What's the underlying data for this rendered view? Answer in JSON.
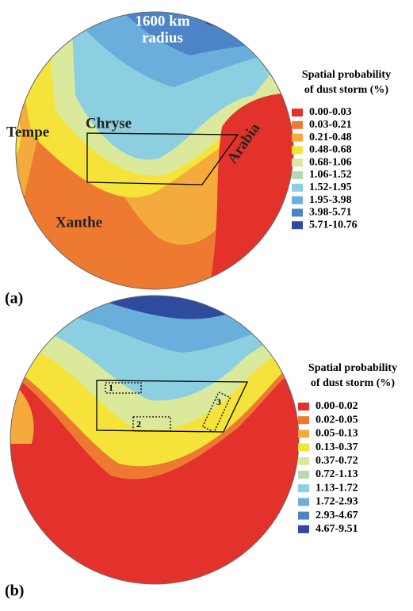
{
  "panels": [
    {
      "label": "(a)",
      "annotations": [
        [
          "1600 km",
          "radius"
        ],
        [
          "Tempe"
        ],
        [
          "Chryse"
        ],
        [
          "Xanthe"
        ],
        [
          "Arabia"
        ]
      ],
      "legend": {
        "title": [
          "Spatial probability",
          "of dust storm (%)"
        ],
        "items": [
          {
            "label": "0.00-0.03",
            "color": "#e3322b"
          },
          {
            "label": "0.03-0.21",
            "color": "#ee7a32"
          },
          {
            "label": "0.21-0.48",
            "color": "#f4ab3c"
          },
          {
            "label": "0.48-0.68",
            "color": "#f6e33a"
          },
          {
            "label": "0.68-1.06",
            "color": "#dbe99c"
          },
          {
            "label": "1.06-1.52",
            "color": "#b5dab3"
          },
          {
            "label": "1.52-1.95",
            "color": "#8ccfe0"
          },
          {
            "label": "1.95-3.98",
            "color": "#6aaedb"
          },
          {
            "label": "3.98-5.71",
            "color": "#4d84c6"
          },
          {
            "label": "5.71-10.76",
            "color": "#2e4b9e"
          }
        ]
      }
    },
    {
      "label": "(b)",
      "boxes": [
        "1",
        "2",
        "3"
      ],
      "legend": {
        "title": [
          "Spatial probability",
          "of dust storm (%)"
        ],
        "items": [
          {
            "label": "0.00-0.02",
            "color": "#e3322b"
          },
          {
            "label": "0.02-0.05",
            "color": "#ee7a32"
          },
          {
            "label": "0.05-0.13",
            "color": "#f4ab3c"
          },
          {
            "label": "0.13-0.37",
            "color": "#f6e33a"
          },
          {
            "label": "0.37-0.72",
            "color": "#dbe99c"
          },
          {
            "label": "0.72-1.13",
            "color": "#b5dab3"
          },
          {
            "label": "1.13-1.72",
            "color": "#8ccfe0"
          },
          {
            "label": "1.72-2.93",
            "color": "#6aaedb"
          },
          {
            "label": "2.93-4.67",
            "color": "#4d84c6"
          },
          {
            "label": "4.67-9.51",
            "color": "#2e4b9e"
          }
        ]
      }
    }
  ]
}
